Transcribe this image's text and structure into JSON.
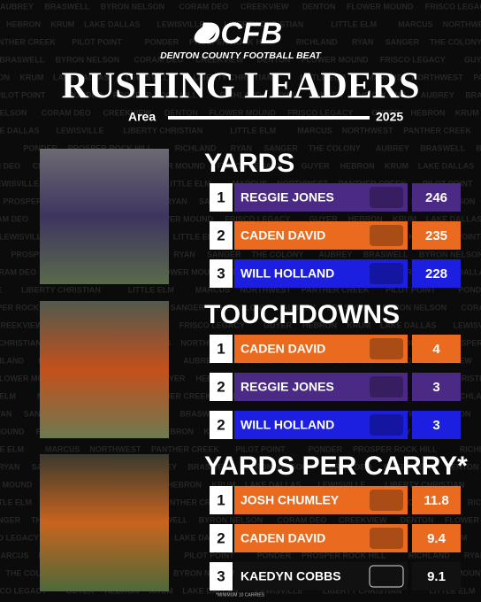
{
  "background_names": [
    "AUBREY",
    "BRASWELL",
    "BYRON NELSON",
    "CORAM DEO",
    "CREEKVIEW",
    "DENTON",
    "FLOWER MOUND",
    "FRISCO LEGACY",
    "GUYER",
    "HEBRON",
    "KRUM",
    "LAKE DALLAS",
    "LEWISVILLE",
    "LIBERTY CHRISTIAN",
    "LITTLE ELM",
    "MARCUS",
    "NORTHWEST",
    "PANTHER CREEK",
    "PILOT POINT",
    "PONDER",
    "PROSPER ROCK HILL",
    "RICHLAND",
    "RYAN",
    "SANGER",
    "THE COLONY"
  ],
  "header": {
    "logo": "DCFB",
    "subtitle": "DENTON COUNTY FOOTBALL BEAT",
    "title": "RUSHING LEADERS",
    "area": "Area",
    "season": "2025"
  },
  "sections": [
    {
      "title": "YARDS",
      "rows": [
        {
          "rank": 1,
          "name": "REGGIE JONES",
          "value": 246,
          "color": "#4b2a85"
        },
        {
          "rank": 2,
          "name": "CADEN DAVID",
          "value": 235,
          "color": "#ea6a1f"
        },
        {
          "rank": 3,
          "name": "WILL HOLLAND",
          "value": 228,
          "color": "#1c1ee0"
        }
      ]
    },
    {
      "title": "TOUCHDOWNS",
      "rows": [
        {
          "rank": 1,
          "name": "CADEN DAVID",
          "value": 4,
          "color": "#ea6a1f"
        },
        {
          "rank": 2,
          "name": "REGGIE JONES",
          "value": 3,
          "color": "#4b2a85"
        },
        {
          "rank": 2,
          "name": "WILL HOLLAND",
          "value": 3,
          "color": "#1c1ee0"
        }
      ]
    },
    {
      "title": "YARDS PER CARRY*",
      "rows": [
        {
          "rank": 1,
          "name": "JOSH CHUMLEY",
          "value": 11.8,
          "color": "#ea6a1f"
        },
        {
          "rank": 2,
          "name": "CADEN DAVID",
          "value": 9.4,
          "color": "#ea6a1f"
        },
        {
          "rank": 3,
          "name": "KAEDYN COBBS",
          "value": 9.1,
          "color": "#111111"
        }
      ]
    }
  ],
  "footnote": "*MINIMUM 10 CARRIES"
}
